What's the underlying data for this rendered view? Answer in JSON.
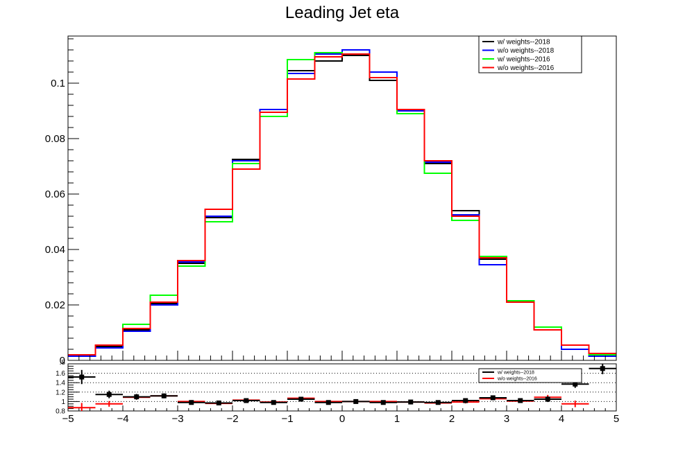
{
  "chart_data": [
    {
      "type": "line",
      "title": "Leading Jet eta",
      "xlabel": "",
      "ylabel": "",
      "bin_edges": [
        -5,
        -4.5,
        -4,
        -3.5,
        -3,
        -2.5,
        -2,
        -1.5,
        -1,
        -0.5,
        0,
        0.5,
        1,
        1.5,
        2,
        2.5,
        3,
        3.5,
        4,
        4.5,
        5
      ],
      "xlim": [
        -5,
        5
      ],
      "ylim": [
        0,
        0.117
      ],
      "y_tick_labels": [
        "0",
        "0.02",
        "0.04",
        "0.06",
        "0.08",
        "0.1"
      ],
      "x_tick_labels": [
        "−5",
        "−4",
        "−3",
        "−2",
        "−1",
        "0",
        "1",
        "2",
        "3",
        "4",
        "5"
      ],
      "legend_position": "top-right",
      "series": [
        {
          "name": "w/ weights--2018",
          "color": "#000000",
          "values": [
            0.0018,
            0.005,
            0.011,
            0.0205,
            0.035,
            0.0515,
            0.0725,
            0.0895,
            0.1045,
            0.108,
            0.11,
            0.101,
            0.089,
            0.071,
            0.054,
            0.0365,
            0.021,
            0.011,
            0.0055,
            0.002
          ]
        },
        {
          "name": "w/o weights--2018",
          "color": "#0000ff",
          "values": [
            0.0015,
            0.0045,
            0.0105,
            0.02,
            0.0355,
            0.052,
            0.072,
            0.0905,
            0.1035,
            0.1105,
            0.112,
            0.104,
            0.09,
            0.0715,
            0.0525,
            0.0345,
            0.021,
            0.011,
            0.004,
            0.0015
          ]
        },
        {
          "name": "w/ weights--2016",
          "color": "#00ff00",
          "values": [
            0.002,
            0.0055,
            0.013,
            0.0235,
            0.034,
            0.05,
            0.071,
            0.088,
            0.1085,
            0.111,
            0.1105,
            0.102,
            0.089,
            0.0675,
            0.0505,
            0.0375,
            0.0215,
            0.012,
            0.0055,
            0.002
          ]
        },
        {
          "name": "w/o weights--2016",
          "color": "#ff0000",
          "values": [
            0.002,
            0.0055,
            0.0115,
            0.021,
            0.036,
            0.0545,
            0.069,
            0.0895,
            0.1015,
            0.1095,
            0.1105,
            0.102,
            0.0905,
            0.072,
            0.052,
            0.037,
            0.021,
            0.011,
            0.0055,
            0.0025
          ]
        }
      ]
    },
    {
      "type": "scatter",
      "title": "",
      "xlabel": "",
      "ylabel": "",
      "x": [
        -4.75,
        -4.25,
        -3.75,
        -3.25,
        -2.75,
        -2.25,
        -1.75,
        -1.25,
        -0.75,
        -0.25,
        0.25,
        0.75,
        1.25,
        1.75,
        2.25,
        2.75,
        3.25,
        3.75,
        4.25,
        4.75
      ],
      "xlim": [
        -5,
        5
      ],
      "ylim": [
        0.8,
        1.8
      ],
      "y_tick_labels": [
        "0.8",
        "1",
        "1.2",
        "1.4",
        "1.6"
      ],
      "y_top_tick_label": ".8",
      "reference_lines": [
        1.0,
        1.2,
        1.4,
        1.6
      ],
      "legend_position": "top-right",
      "series": [
        {
          "name": "w/ weights--2018",
          "color": "#000000",
          "values": [
            1.52,
            1.15,
            1.1,
            1.12,
            0.98,
            0.97,
            1.02,
            0.98,
            1.05,
            0.98,
            1.0,
            0.98,
            0.99,
            0.98,
            1.02,
            1.08,
            1.02,
            1.05,
            1.37,
            1.7
          ],
          "errors": [
            0.15,
            0.08,
            0.06,
            0.05,
            0.04,
            0.03,
            0.03,
            0.03,
            0.03,
            0.02,
            0.02,
            0.02,
            0.02,
            0.03,
            0.03,
            0.04,
            0.04,
            0.06,
            0.08,
            0.12
          ]
        },
        {
          "name": "w/o weights--2016",
          "color": "#ff0000",
          "values": [
            0.87,
            0.95,
            1.09,
            1.12,
            1.0,
            0.96,
            1.03,
            0.99,
            1.07,
            1.0,
            1.0,
            1.0,
            0.99,
            0.97,
            0.99,
            1.06,
            1.01,
            1.09,
            0.95,
            null
          ],
          "errors": [
            0.1,
            0.06,
            0.05,
            0.04,
            0.03,
            0.03,
            0.03,
            0.02,
            0.02,
            0.02,
            0.02,
            0.02,
            0.02,
            0.02,
            0.03,
            0.03,
            0.04,
            0.05,
            0.07,
            null
          ]
        }
      ]
    }
  ]
}
